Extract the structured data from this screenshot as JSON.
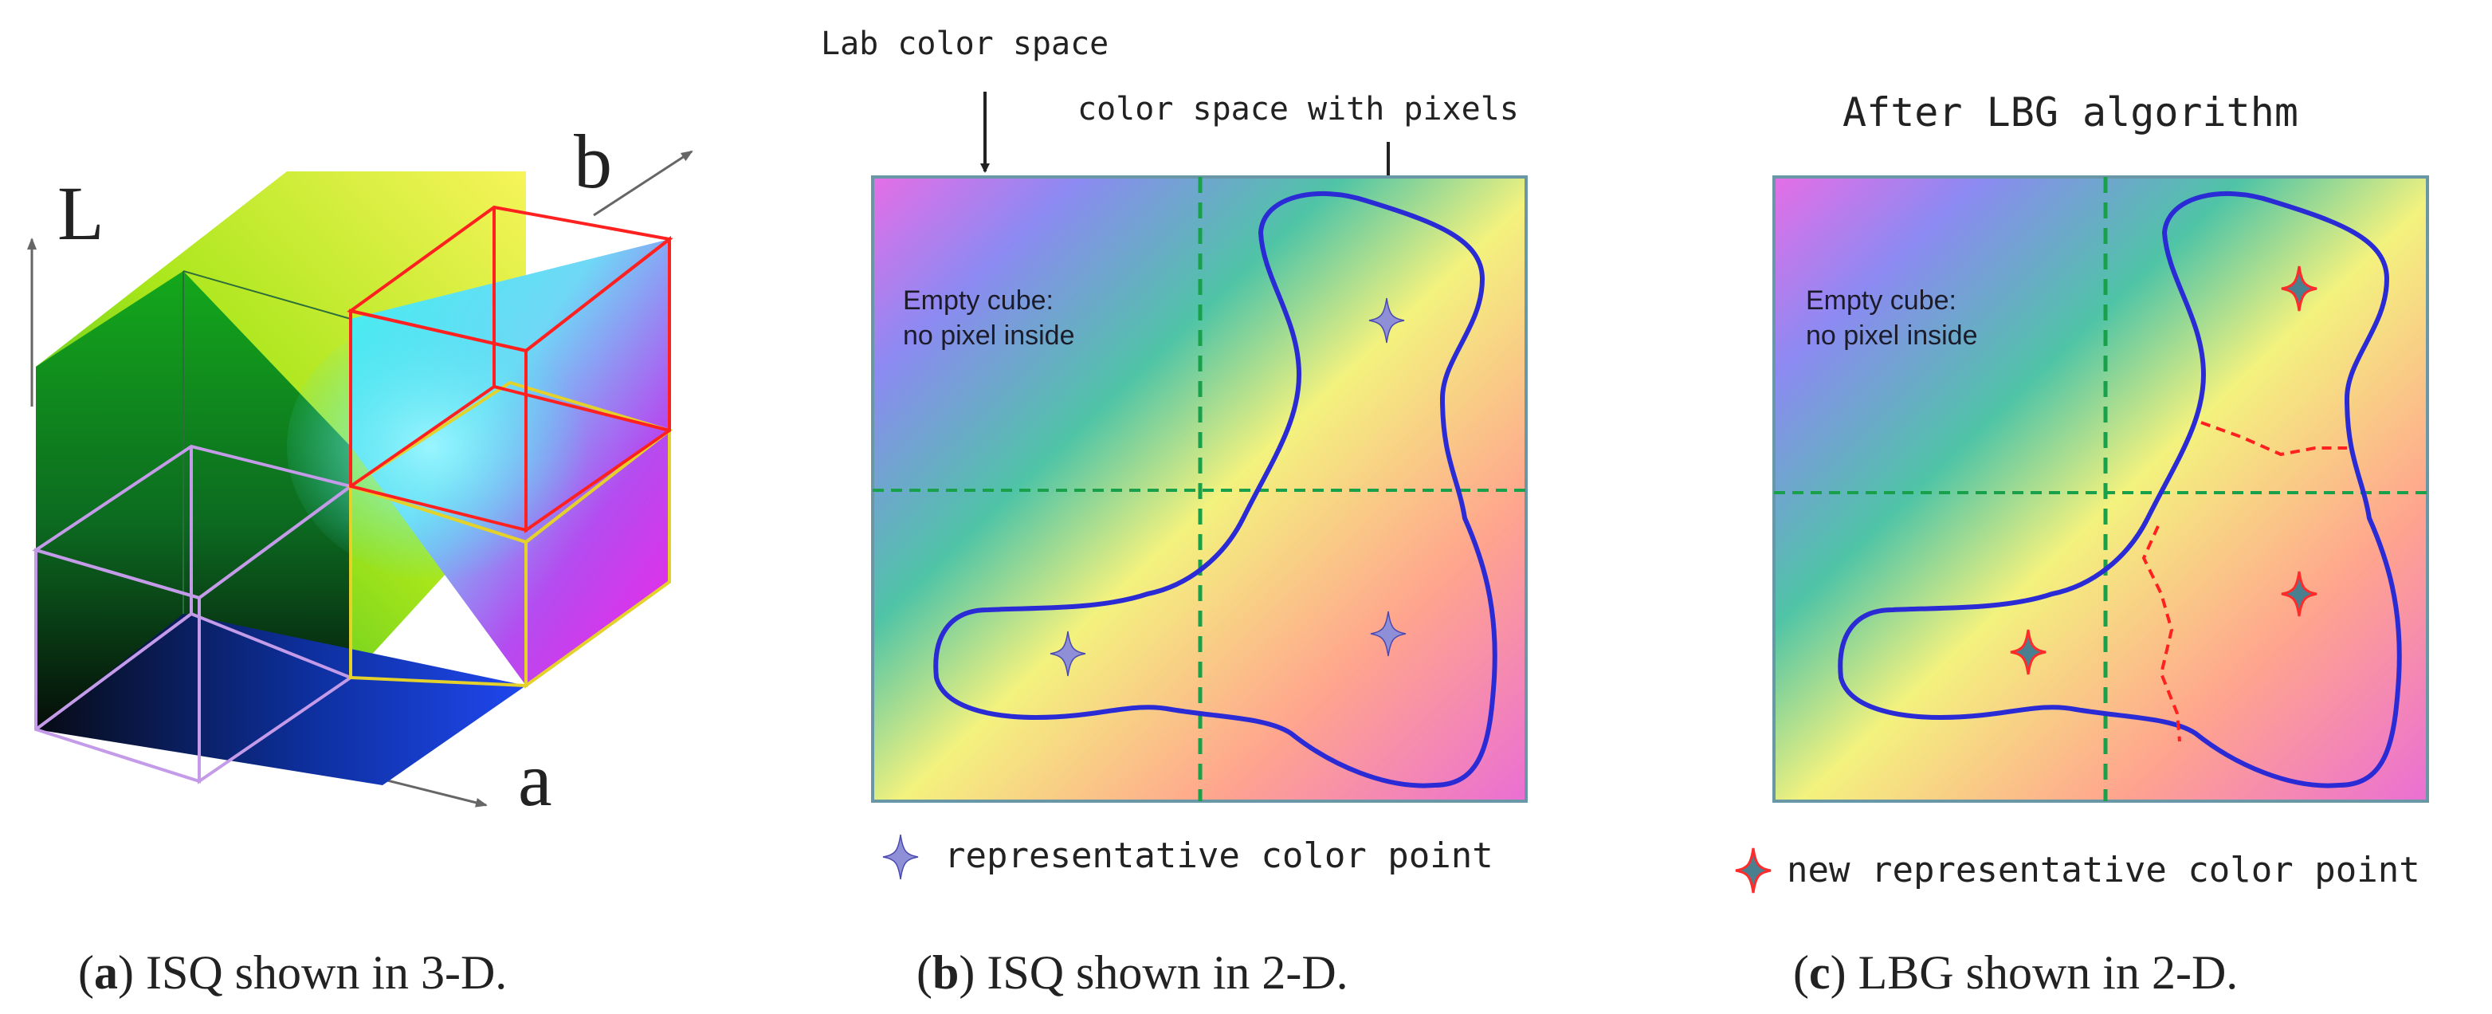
{
  "panel_a": {
    "axis_L": "L",
    "axis_b": "b",
    "axis_a": "a",
    "caption_letter": "a",
    "caption_text": "ISQ shown in 3-D."
  },
  "panel_b": {
    "label_lab": "Lab color space",
    "label_pixels": "color space with pixels",
    "empty_line1": "Empty cube:",
    "empty_line2": "no pixel inside",
    "legend": "representative color point",
    "caption_letter": "b",
    "caption_text": "ISQ shown in 2-D."
  },
  "panel_c": {
    "title": "After LBG algorithm",
    "empty_line1": "Empty cube:",
    "empty_line2": "no pixel inside",
    "legend": "new representative color point",
    "caption_letter": "c",
    "caption_text": "LBG shown in 2-D."
  },
  "colors": {
    "outline_blue": "#2b2bd6",
    "divider_green": "#18a14a",
    "cube_red": "#ff2020",
    "cube_violet": "#c39be8",
    "cube_yellow": "#e4d22a",
    "old_point": "#8f8fd8",
    "new_point": "#ff3a3a"
  }
}
